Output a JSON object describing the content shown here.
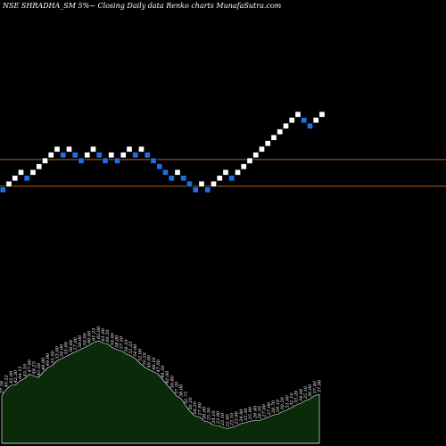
{
  "chart_data": {
    "type": "renko",
    "title": "NSE SHRADHA_SM 5%~  Closing Daily data  Renko  charts MunafaSutra.com",
    "colors": {
      "background": "#000000",
      "up_brick": "#ffffff",
      "down_brick": "#1f6fe0",
      "level_line": "#b5651d",
      "volume_fill": "#0a2a0a",
      "volume_edge": "#ffffff"
    },
    "bricks": [
      {
        "dir": "down",
        "level": 0
      },
      {
        "dir": "up",
        "level": 1
      },
      {
        "dir": "up",
        "level": 2
      },
      {
        "dir": "up",
        "level": 3
      },
      {
        "dir": "down",
        "level": 2
      },
      {
        "dir": "up",
        "level": 3
      },
      {
        "dir": "up",
        "level": 4
      },
      {
        "dir": "up",
        "level": 5
      },
      {
        "dir": "up",
        "level": 6
      },
      {
        "dir": "up",
        "level": 7
      },
      {
        "dir": "down",
        "level": 6
      },
      {
        "dir": "up",
        "level": 7
      },
      {
        "dir": "down",
        "level": 6
      },
      {
        "dir": "down",
        "level": 5
      },
      {
        "dir": "up",
        "level": 6
      },
      {
        "dir": "up",
        "level": 7
      },
      {
        "dir": "down",
        "level": 6
      },
      {
        "dir": "down",
        "level": 5
      },
      {
        "dir": "up",
        "level": 6
      },
      {
        "dir": "down",
        "level": 5
      },
      {
        "dir": "up",
        "level": 6
      },
      {
        "dir": "up",
        "level": 7
      },
      {
        "dir": "down",
        "level": 6
      },
      {
        "dir": "up",
        "level": 7
      },
      {
        "dir": "down",
        "level": 6
      },
      {
        "dir": "down",
        "level": 5
      },
      {
        "dir": "down",
        "level": 4
      },
      {
        "dir": "down",
        "level": 3
      },
      {
        "dir": "down",
        "level": 2
      },
      {
        "dir": "up",
        "level": 3
      },
      {
        "dir": "down",
        "level": 2
      },
      {
        "dir": "down",
        "level": 1
      },
      {
        "dir": "down",
        "level": 0
      },
      {
        "dir": "up",
        "level": 1
      },
      {
        "dir": "down",
        "level": 0
      },
      {
        "dir": "up",
        "level": 1
      },
      {
        "dir": "up",
        "level": 2
      },
      {
        "dir": "up",
        "level": 3
      },
      {
        "dir": "down",
        "level": 2
      },
      {
        "dir": "up",
        "level": 3
      },
      {
        "dir": "up",
        "level": 4
      },
      {
        "dir": "up",
        "level": 5
      },
      {
        "dir": "up",
        "level": 6
      },
      {
        "dir": "up",
        "level": 7
      },
      {
        "dir": "up",
        "level": 8
      },
      {
        "dir": "up",
        "level": 9
      },
      {
        "dir": "up",
        "level": 10
      },
      {
        "dir": "up",
        "level": 11
      },
      {
        "dir": "up",
        "level": 12
      },
      {
        "dir": "up",
        "level": 13
      },
      {
        "dir": "down",
        "level": 12
      },
      {
        "dir": "down",
        "level": 11
      },
      {
        "dir": "up",
        "level": 12
      },
      {
        "dir": "up",
        "level": 13
      }
    ],
    "level_lines": [
      {
        "level": 5.7
      },
      {
        "level": 1.1
      }
    ],
    "volume_labels": [
      "37.50",
      "40.22",
      "42.00",
      "42.30",
      "44.12",
      "45.10",
      "47.00",
      "46.25",
      "45.50",
      "48.00",
      "49.90",
      "51.00",
      "53.00",
      "54.00",
      "55.00",
      "56.00",
      "57.00",
      "58.00",
      "59.00",
      "60.00",
      "61.25",
      "62.00",
      "61.00",
      "60.50",
      "59.00",
      "58.00",
      "57.50",
      "56.10",
      "55.25",
      "54.00",
      "52.00",
      "50.20",
      "49.00",
      "48.10",
      "47.00",
      "44.50",
      "42.00",
      "39.80",
      "37.20",
      "36.00",
      "32.75",
      "30.10",
      "28.20",
      "27.80",
      "26.00",
      "25.50",
      "24.10",
      "23.90",
      "23.10",
      "22.60",
      "23.10",
      "23.80",
      "24.90",
      "25.30",
      "25.90",
      "26.40",
      "26.20",
      "27.00",
      "27.90",
      "28.70",
      "29.10",
      "30.20",
      "31.00",
      "32.10",
      "33.20",
      "34.00",
      "35.10",
      "36.00",
      "37.40",
      "37.90"
    ]
  }
}
